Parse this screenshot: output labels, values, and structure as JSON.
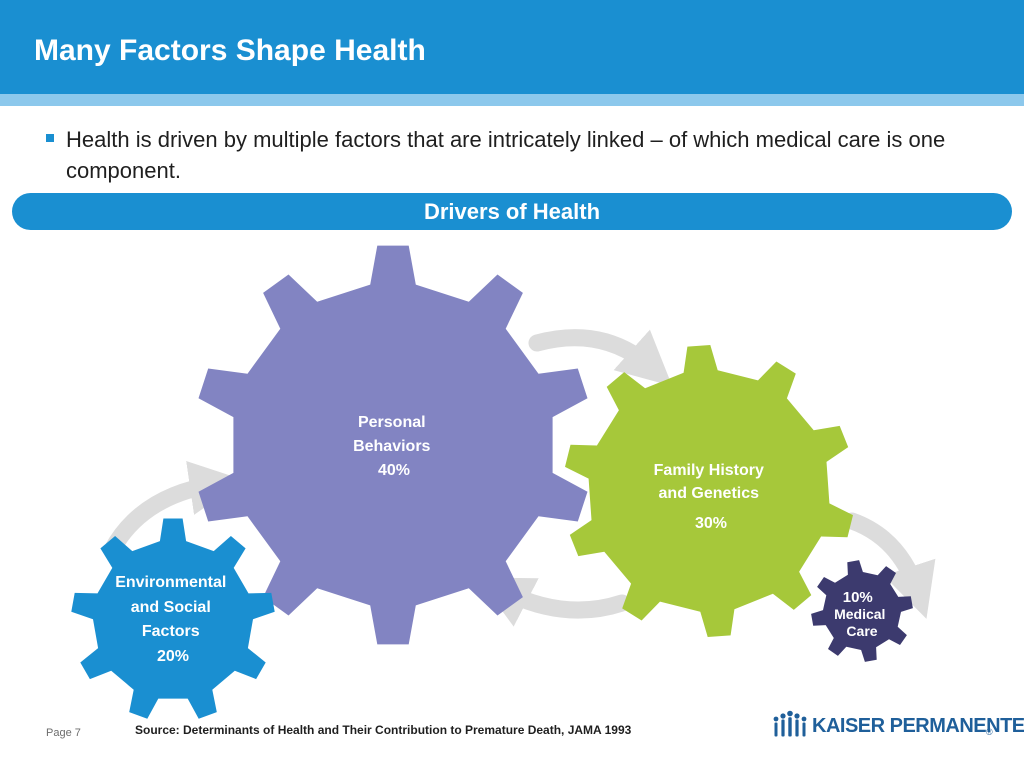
{
  "title": "Many Factors Shape Health",
  "bullet": "Health is driven by multiple factors that are intricately linked – of which medical care is one component.",
  "banner": "Drivers of Health",
  "gears": {
    "personal": {
      "lines": [
        "Personal",
        "Behaviors",
        "40%"
      ],
      "color": "#8284c2"
    },
    "family": {
      "lines": [
        "Family History",
        "and Genetics",
        "30%"
      ],
      "color": "#a6c83a"
    },
    "environmental": {
      "lines": [
        "Environmental",
        "and Social",
        "Factors",
        "20%"
      ],
      "color": "#1a8fd1"
    },
    "medical": {
      "lines": [
        "10%",
        "Medical",
        "Care"
      ],
      "color": "#3c3a6e"
    }
  },
  "arrow_color": "#dcdcdc",
  "footer": {
    "page": "Page 7",
    "source": "Source: Determinants of Health and Their Contribution to Premature Death, JAMA 1993"
  },
  "logo": {
    "text": "KAISER PERMANENTE",
    "mark": "®"
  }
}
